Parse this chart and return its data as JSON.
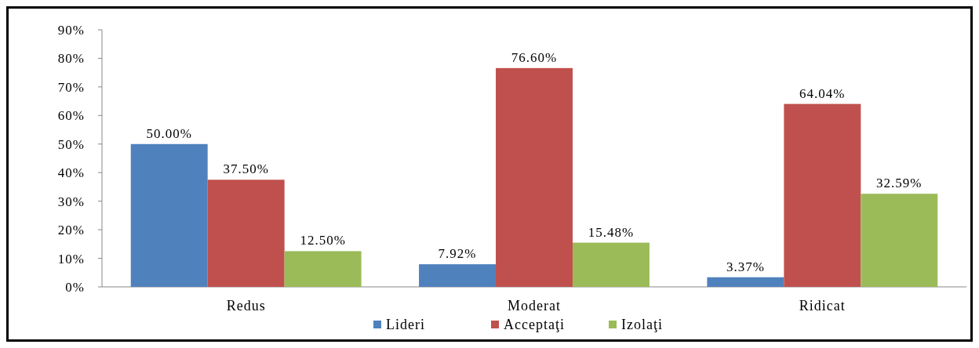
{
  "chart_data": {
    "type": "bar",
    "categories": [
      "Redus",
      "Moderat",
      "Ridicat"
    ],
    "series": [
      {
        "name": "Lideri",
        "color": "#4f81bd",
        "values": [
          50,
          7.92,
          3.37
        ],
        "value_labels": [
          "50.00%",
          "7.92%",
          "3.37%"
        ]
      },
      {
        "name": "Acceptaţi",
        "color": "#c0504d",
        "values": [
          37.5,
          76.6,
          64.04
        ],
        "value_labels": [
          "37.50%",
          "76.60%",
          "64.04%"
        ]
      },
      {
        "name": "Izolaţi",
        "color": "#9bbb59",
        "values": [
          12.5,
          15.48,
          32.59
        ],
        "value_labels": [
          "12.50%",
          "15.48%",
          "32.59%"
        ]
      }
    ],
    "ylim": [
      0,
      90
    ],
    "yticks": [
      {
        "value": 0,
        "label": "0%"
      },
      {
        "value": 10,
        "label": "10%"
      },
      {
        "value": 20,
        "label": "20%"
      },
      {
        "value": 30,
        "label": "30%"
      },
      {
        "value": 40,
        "label": "40%"
      },
      {
        "value": 50,
        "label": "50%"
      },
      {
        "value": 60,
        "label": "60%"
      },
      {
        "value": 70,
        "label": "70%"
      },
      {
        "value": 80,
        "label": "80%"
      },
      {
        "value": 90,
        "label": "90%"
      }
    ],
    "grid": false,
    "legend": "bottom"
  }
}
